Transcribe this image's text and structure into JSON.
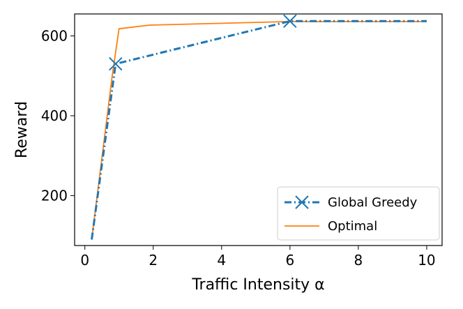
{
  "chart_data": {
    "type": "line",
    "xlabel": "Traffic Intensity α",
    "ylabel": "Reward",
    "xlim": [
      -0.3,
      10.45
    ],
    "ylim": [
      75,
      655
    ],
    "xticks": [
      0,
      2,
      4,
      6,
      8,
      10
    ],
    "yticks": [
      200,
      400,
      600
    ],
    "xtick_labels": [
      "0",
      "2",
      "4",
      "6",
      "8",
      "10"
    ],
    "ytick_labels": [
      "200",
      "400",
      "600"
    ],
    "grid": false,
    "legend_position": "bottom-right",
    "series": [
      {
        "name": "Global Greedy",
        "color": "#1f77b4",
        "line_style": "dash-dot",
        "marker": "x",
        "x": [
          0.2,
          0.9,
          6.0,
          10.0
        ],
        "y": [
          90,
          530,
          637,
          637
        ],
        "marker_points": [
          1,
          2
        ]
      },
      {
        "name": "Optimal",
        "color": "#ff7f0e",
        "line_style": "solid",
        "x": [
          0.2,
          0.8,
          1.0,
          1.9,
          6.0,
          10.0
        ],
        "y": [
          90,
          500,
          618,
          627,
          636,
          636
        ]
      }
    ]
  }
}
